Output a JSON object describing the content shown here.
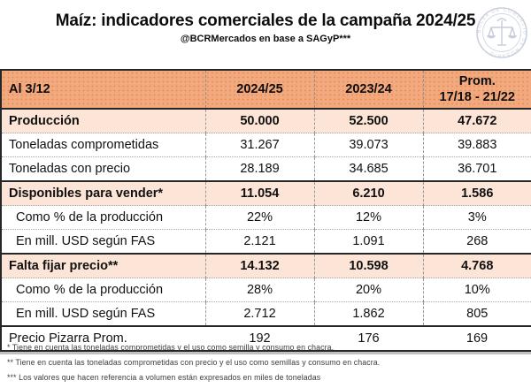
{
  "header": {
    "title": "Maíz: indicadores comerciales de la campaña 2024/25",
    "subtitle": "@BCRMercados en base a SAGyP***",
    "logo_icon": "bolsa-de-comercio-rosario-seal"
  },
  "colors": {
    "header_row_bg": "#F3A97E",
    "section_row_bg": "#FCE4D6",
    "solid_border": "#262626",
    "dashed_divider": "#9A9A9A",
    "seal_tint": "#BDC6D6"
  },
  "chart_data": {
    "type": "table",
    "title": "Maíz: indicadores comerciales de la campaña 2024/25",
    "subtitle": "@BCRMercados en base a SAGyP***",
    "columns": [
      {
        "label": "Al 3/12"
      },
      {
        "label": "2024/25"
      },
      {
        "label": "2023/24"
      },
      {
        "label": "Prom.",
        "label2": "17/18 - 21/22"
      }
    ],
    "rows": [
      {
        "label": "Producción",
        "values": [
          "50.000",
          "52.500",
          "47.672"
        ],
        "style": "section"
      },
      {
        "label": "Toneladas comprometidas",
        "values": [
          "31.267",
          "39.073",
          "39.883"
        ],
        "style": "normal"
      },
      {
        "label": "Toneladas con precio",
        "values": [
          "28.189",
          "34.685",
          "36.701"
        ],
        "style": "normal"
      },
      {
        "label": "Disponibles para vender*",
        "values": [
          "11.054",
          "6.210",
          "1.586"
        ],
        "style": "section"
      },
      {
        "label": "Como % de la producción",
        "values": [
          "22%",
          "12%",
          "3%"
        ],
        "style": "indent"
      },
      {
        "label": "En mill. USD según FAS",
        "values": [
          "2.121",
          "1.091",
          "268"
        ],
        "style": "indent"
      },
      {
        "label": "Falta fijar precio**",
        "values": [
          "14.132",
          "10.598",
          "4.768"
        ],
        "style": "section"
      },
      {
        "label": "Como % de la producción",
        "values": [
          "28%",
          "20%",
          "10%"
        ],
        "style": "indent"
      },
      {
        "label": "En mill. USD según FAS",
        "values": [
          "2.712",
          "1.862",
          "805"
        ],
        "style": "indent"
      },
      {
        "label": "Precio Pizarra Prom.",
        "values": [
          "192",
          "176",
          "169"
        ],
        "style": "footer"
      }
    ]
  },
  "footnotes": [
    "* Tiene en cuenta las toneladas comprometidas y el uso como semilla y consumo en chacra.",
    "** Tiene en cuenta las toneladas comprometidas con precio y el uso como semillas y consumo en chacra.",
    "*** Los valores que hacen referencia a volumen están expresados en miles de toneladas"
  ]
}
